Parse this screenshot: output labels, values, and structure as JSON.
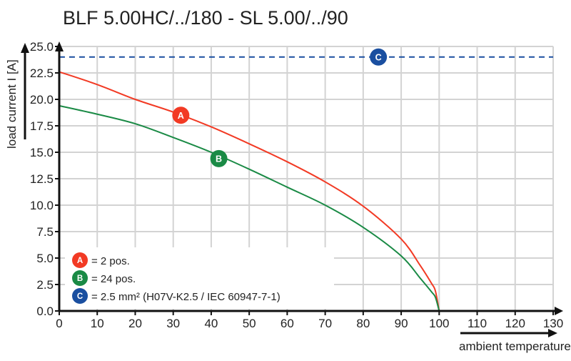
{
  "chart_data": {
    "type": "line",
    "title": "BLF 5.00HC/../180 - SL 5.00/../90",
    "xlabel": "ambient temperature T [°C]",
    "ylabel": "load current I [A]",
    "xlim": [
      0,
      130
    ],
    "ylim": [
      0,
      25
    ],
    "grid": true,
    "x_ticks": [
      "0",
      "10",
      "20",
      "30",
      "40",
      "50",
      "60",
      "70",
      "80",
      "90",
      "100",
      "110",
      "120",
      "130"
    ],
    "y_ticks": [
      "0.0",
      "2.5",
      "5.0",
      "7.5",
      "10.0",
      "12.5",
      "15.0",
      "17.5",
      "20.0",
      "22.5",
      "25.0"
    ],
    "series": [
      {
        "marker": "A",
        "color": "#f23a24",
        "x": [
          0,
          10,
          20,
          30,
          40,
          50,
          60,
          70,
          80,
          90,
          95,
          98,
          99,
          100
        ],
        "y": [
          22.6,
          21.4,
          20.0,
          18.8,
          17.4,
          15.8,
          14.1,
          12.2,
          9.9,
          6.8,
          4.3,
          2.6,
          1.9,
          0
        ],
        "marker_at": [
          32,
          18.5
        ]
      },
      {
        "marker": "B",
        "color": "#1a8a45",
        "x": [
          0,
          10,
          20,
          30,
          40,
          50,
          60,
          70,
          80,
          90,
          95,
          98,
          99,
          100
        ],
        "y": [
          19.4,
          18.6,
          17.7,
          16.4,
          15.0,
          13.4,
          11.7,
          10.0,
          7.9,
          5.2,
          3.1,
          1.8,
          1.3,
          0
        ],
        "marker_at": [
          42,
          14.4
        ]
      },
      {
        "marker": "C",
        "color": "#1a4fa0",
        "style": "dashed",
        "x": [
          0,
          130
        ],
        "y": [
          24.0,
          24.0
        ],
        "marker_at": [
          84,
          24.0
        ]
      }
    ],
    "legend": {
      "placement": "bottom-left",
      "entries": [
        {
          "marker": "A",
          "text": "= 2 pos."
        },
        {
          "marker": "B",
          "text": "= 24 pos."
        },
        {
          "marker": "C",
          "text": "= 2.5 mm² (H07V-K2.5 / IEC 60947-7-1)"
        }
      ]
    }
  }
}
